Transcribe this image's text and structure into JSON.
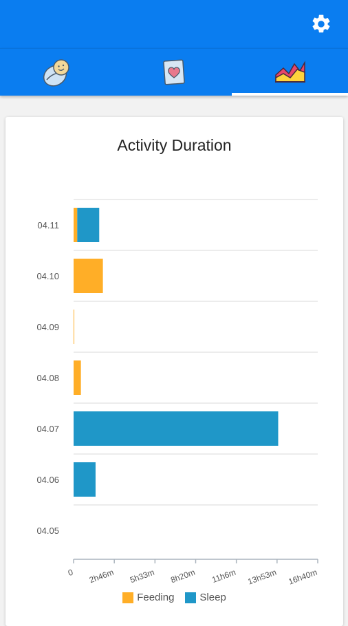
{
  "app": {
    "tabs": [
      {
        "name": "baby",
        "icon": "baby-icon",
        "active": false
      },
      {
        "name": "care",
        "icon": "heart-card-icon",
        "active": false
      },
      {
        "name": "stats",
        "icon": "area-chart-icon",
        "active": true
      }
    ],
    "settings_icon": "gear-icon",
    "colors": {
      "primary": "#0a7df0",
      "feeding": "#ffae27",
      "sleep": "#1f97c8"
    }
  },
  "chart_data": {
    "type": "bar",
    "orientation": "horizontal",
    "stacked": true,
    "title": "Activity Duration",
    "categories": [
      "04.11",
      "04.10",
      "04.09",
      "04.08",
      "04.07",
      "04.06",
      "04.05"
    ],
    "series": [
      {
        "name": "Feeding",
        "color": "#ffae27",
        "values_minutes": [
          15,
          120,
          2,
          30,
          0,
          0,
          0
        ]
      },
      {
        "name": "Sleep",
        "color": "#1f97c8",
        "values_minutes": [
          90,
          0,
          0,
          0,
          838,
          90,
          0
        ]
      }
    ],
    "x_tick_labels": [
      "0",
      "2h46m",
      "5h33m",
      "8h20m",
      "11h6m",
      "13h53m",
      "16h40m"
    ],
    "x_ticks_minutes": [
      0,
      166.67,
      333.33,
      500,
      666.67,
      833.33,
      1000
    ],
    "xlim_minutes": [
      0,
      1000
    ],
    "grid": true,
    "legend_position": "bottom"
  }
}
